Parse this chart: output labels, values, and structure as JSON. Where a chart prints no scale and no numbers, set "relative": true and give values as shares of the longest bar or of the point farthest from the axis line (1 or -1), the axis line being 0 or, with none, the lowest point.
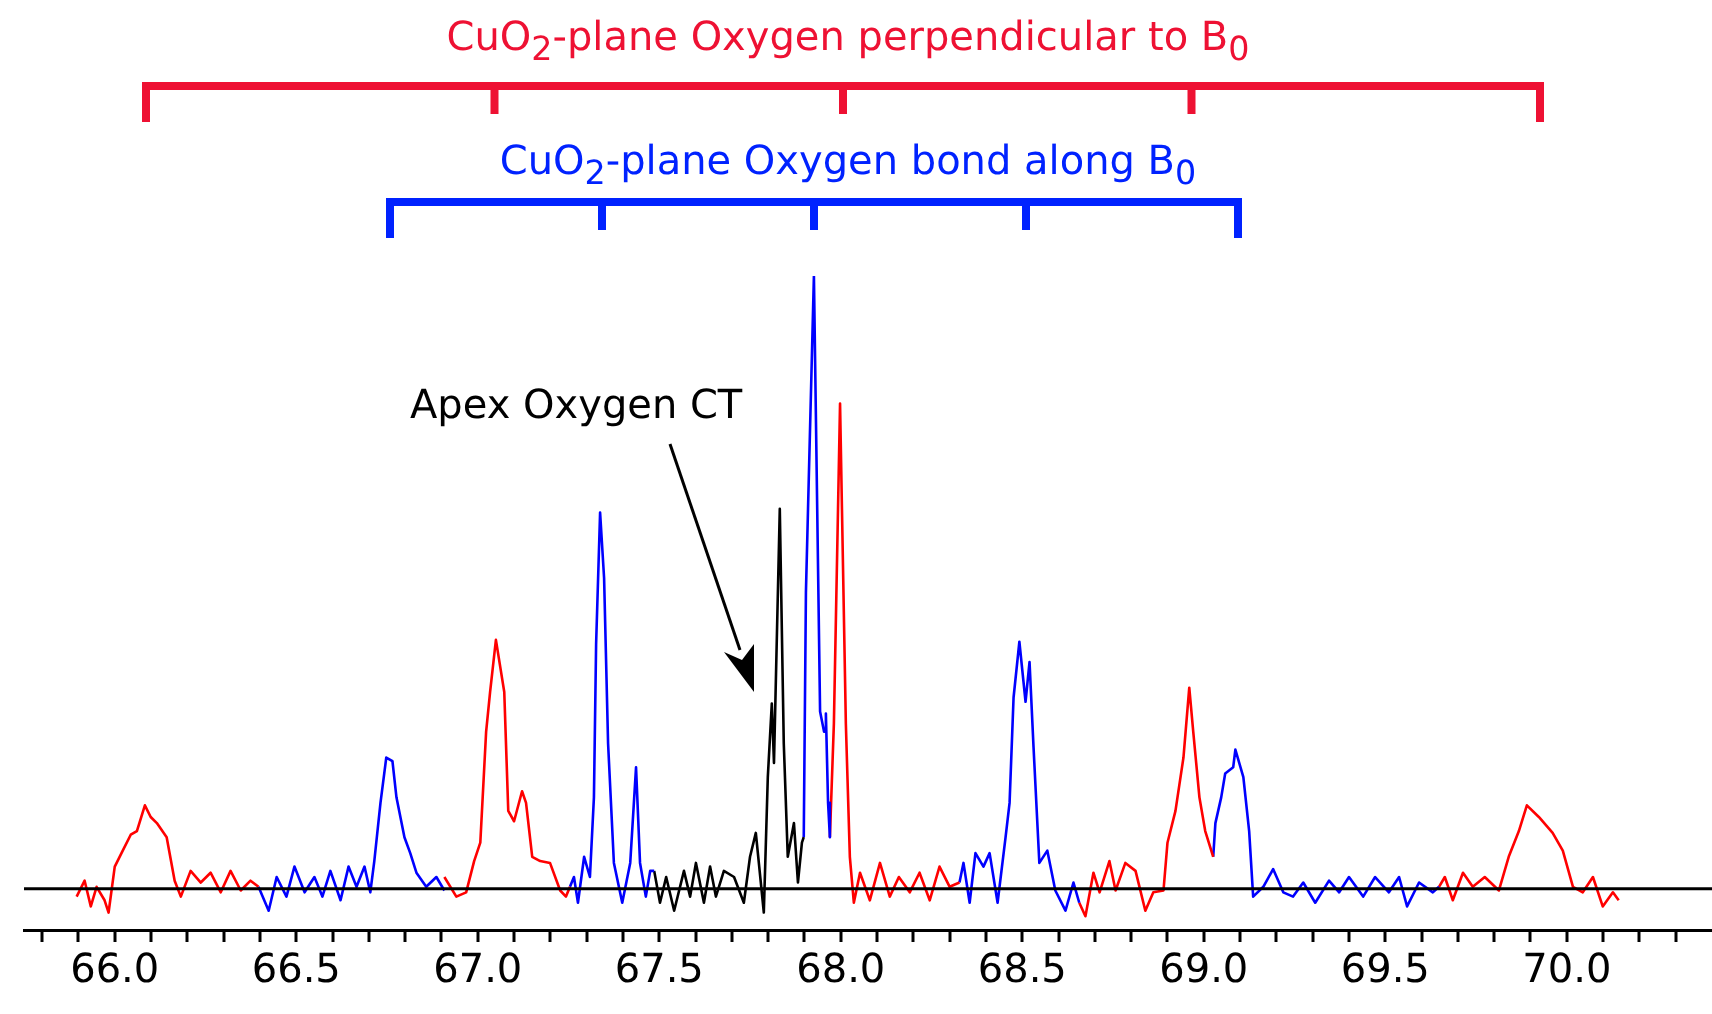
{
  "chart_data": {
    "type": "line",
    "relative": true,
    "grid": false,
    "marker": "none",
    "line_style": "solid",
    "tick_labels": "x",
    "annotations": [
      "CuO$_{2}$-plane Oxygen perpendicular to B$_{0}$",
      "CuO$_{2}$-plane Oxygen bond along B$_{0}$",
      "Apex Oxygen CT"
    ],
    "xlim": [
      65.75,
      70.4
    ],
    "xticks": [
      {
        "value": 65.8,
        "label": null
      },
      {
        "value": 65.9,
        "label": null
      },
      {
        "value": 66,
        "label": "66.0"
      },
      {
        "value": 66.1,
        "label": null
      },
      {
        "value": 66.2,
        "label": null
      },
      {
        "value": 66.3,
        "label": null
      },
      {
        "value": 66.4,
        "label": null
      },
      {
        "value": 66.5,
        "label": "66.5"
      },
      {
        "value": 66.6,
        "label": null
      },
      {
        "value": 66.7,
        "label": null
      },
      {
        "value": 66.8,
        "label": null
      },
      {
        "value": 66.9,
        "label": null
      },
      {
        "value": 67,
        "label": "67.0"
      },
      {
        "value": 67.1,
        "label": null
      },
      {
        "value": 67.2,
        "label": null
      },
      {
        "value": 67.3,
        "label": null
      },
      {
        "value": 67.4,
        "label": null
      },
      {
        "value": 67.5,
        "label": "67.5"
      },
      {
        "value": 67.6,
        "label": null
      },
      {
        "value": 67.7,
        "label": null
      },
      {
        "value": 67.8,
        "label": null
      },
      {
        "value": 67.9,
        "label": null
      },
      {
        "value": 68,
        "label": "68.0"
      },
      {
        "value": 68.1,
        "label": null
      },
      {
        "value": 68.2,
        "label": null
      },
      {
        "value": 68.3,
        "label": null
      },
      {
        "value": 68.4,
        "label": null
      },
      {
        "value": 68.5,
        "label": "68.5"
      },
      {
        "value": 68.6,
        "label": null
      },
      {
        "value": 68.7,
        "label": null
      },
      {
        "value": 68.8,
        "label": null
      },
      {
        "value": 68.9,
        "label": null
      },
      {
        "value": 69,
        "label": "69.0"
      },
      {
        "value": 69.1,
        "label": null
      },
      {
        "value": 69.2,
        "label": null
      },
      {
        "value": 69.3,
        "label": null
      },
      {
        "value": 69.4,
        "label": null
      },
      {
        "value": 69.5,
        "label": "69.5"
      },
      {
        "value": 69.6,
        "label": null
      },
      {
        "value": 69.7,
        "label": null
      },
      {
        "value": 69.8,
        "label": null
      },
      {
        "value": 69.9,
        "label": null
      },
      {
        "value": 70,
        "label": "70.0"
      },
      {
        "value": 70.1,
        "label": null
      },
      {
        "value": 70.2,
        "label": null
      },
      {
        "value": 70.3,
        "label": null
      }
    ],
    "ref_lines": [
      {
        "axis": "y",
        "value": 0,
        "color": "#000000"
      }
    ],
    "series": [
      {
        "color": "#ff0000",
        "x": [
          65.895,
          65.917,
          65.934,
          65.95,
          65.972,
          65.983,
          66.0,
          66.022,
          66.044,
          66.061,
          66.083,
          66.099,
          66.116,
          66.143,
          66.165,
          66.182,
          66.209,
          66.237,
          66.264,
          66.292,
          66.319,
          66.347,
          66.374,
          66.396
        ],
        "values": [
          -0.013,
          0.013,
          -0.029,
          0.003,
          -0.019,
          -0.039,
          0.036,
          0.062,
          0.088,
          0.094,
          0.136,
          0.117,
          0.107,
          0.084,
          0.013,
          -0.013,
          0.029,
          0.01,
          0.026,
          -0.006,
          0.029,
          -0.003,
          0.013,
          0.003
        ]
      },
      {
        "color": "#0000ff",
        "x": [
          66.396,
          66.424,
          66.446,
          66.473,
          66.495,
          66.523,
          66.55,
          66.572,
          66.594,
          66.622,
          66.644,
          66.666,
          66.688,
          66.704,
          66.715,
          66.732,
          66.748,
          66.765,
          66.776,
          66.798,
          66.814,
          66.831,
          66.858,
          66.886,
          66.908
        ],
        "values": [
          0.003,
          -0.036,
          0.019,
          -0.013,
          0.036,
          -0.006,
          0.019,
          -0.013,
          0.029,
          -0.019,
          0.036,
          0.003,
          0.036,
          -0.006,
          0.045,
          0.14,
          0.214,
          0.208,
          0.149,
          0.084,
          0.058,
          0.026,
          0.003,
          0.019,
          -0.003
        ]
      },
      {
        "color": "#ff0000",
        "x": [
          66.908,
          66.941,
          66.968,
          66.99,
          67.007,
          67.023,
          67.034,
          67.05,
          67.073,
          67.084,
          67.1,
          67.122,
          67.133,
          67.15,
          67.172,
          67.199,
          67.227,
          67.243,
          67.254
        ],
        "values": [
          0.019,
          -0.013,
          -0.006,
          0.045,
          0.075,
          0.256,
          0.321,
          0.406,
          0.321,
          0.127,
          0.11,
          0.159,
          0.14,
          0.052,
          0.045,
          0.042,
          -0.003,
          -0.013,
          0.003
        ]
      },
      {
        "color": "#0000ff",
        "x": [
          67.254,
          67.265,
          67.276,
          67.293,
          67.309,
          67.32,
          67.326,
          67.337,
          67.348,
          67.359,
          67.375,
          67.398,
          67.42,
          67.436,
          67.447,
          67.463,
          67.475,
          67.486
        ],
        "values": [
          0.003,
          0.019,
          -0.023,
          0.052,
          0.019,
          0.149,
          0.399,
          0.614,
          0.507,
          0.237,
          0.042,
          -0.023,
          0.042,
          0.198,
          0.042,
          -0.013,
          0.029,
          0.029
        ]
      },
      {
        "color": "#000000",
        "x": [
          67.486,
          67.502,
          67.519,
          67.541,
          67.568,
          67.585,
          67.601,
          67.623,
          67.64,
          67.656,
          67.678,
          67.706,
          67.733,
          67.75,
          67.766,
          67.788,
          67.799,
          67.81,
          67.816,
          67.832,
          67.843,
          67.854,
          67.871,
          67.882,
          67.893,
          67.898
        ],
        "values": [
          0.029,
          -0.023,
          0.019,
          -0.036,
          0.029,
          -0.013,
          0.042,
          -0.023,
          0.036,
          -0.013,
          0.029,
          0.019,
          -0.023,
          0.052,
          0.091,
          -0.039,
          0.182,
          0.302,
          0.205,
          0.62,
          0.237,
          0.052,
          0.107,
          0.01,
          0.075,
          0.084
        ]
      },
      {
        "color": "#0000ff",
        "x": [
          67.898,
          67.904,
          67.926,
          67.943,
          67.954,
          67.959,
          67.965,
          67.97
        ],
        "values": [
          0.084,
          0.484,
          1,
          0.289,
          0.256,
          0.286,
          0.14,
          0.084
        ]
      },
      {
        "color": "#ff0000",
        "x": [
          67.97,
          67.981,
          67.998,
          68.014,
          68.025,
          68.036,
          68.053,
          68.08,
          68.108,
          68.135,
          68.16,
          68.19,
          68.217,
          68.245,
          68.272,
          68.3,
          68.327
        ],
        "values": [
          0.084,
          0.269,
          0.792,
          0.269,
          0.052,
          -0.023,
          0.026,
          -0.019,
          0.042,
          -0.013,
          0.019,
          -0.006,
          0.026,
          -0.019,
          0.036,
          0.003,
          0.01
        ]
      },
      {
        "color": "#0000ff",
        "x": [
          68.327,
          68.338,
          68.355,
          68.371,
          68.393,
          68.41,
          68.432,
          68.454,
          68.465,
          68.476,
          68.492,
          68.509,
          68.52,
          68.531,
          68.547,
          68.569,
          68.591,
          68.619,
          68.641,
          68.657
        ],
        "values": [
          0.01,
          0.042,
          -0.023,
          0.058,
          0.036,
          0.058,
          -0.023,
          0.084,
          0.14,
          0.312,
          0.403,
          0.305,
          0.37,
          0.231,
          0.042,
          0.062,
          -0.003,
          -0.036,
          0.01,
          -0.023
        ]
      },
      {
        "color": "#ff0000",
        "x": [
          68.657,
          68.674,
          68.696,
          68.713,
          68.74,
          68.757,
          68.784,
          68.812,
          68.839,
          68.861,
          68.889,
          68.9,
          68.922,
          68.944,
          68.96,
          68.971,
          68.988,
          69.004,
          69.026
        ],
        "values": [
          -0.023,
          -0.045,
          0.026,
          -0.006,
          0.045,
          -0.003,
          0.042,
          0.029,
          -0.036,
          -0.006,
          -0.003,
          0.075,
          0.127,
          0.214,
          0.328,
          0.256,
          0.149,
          0.094,
          0.052
        ]
      },
      {
        "color": "#0000ff",
        "x": [
          69.026,
          69.032,
          69.048,
          69.059,
          69.081,
          69.087,
          69.109,
          69.125,
          69.136,
          69.164,
          69.191,
          69.219,
          69.246,
          69.274,
          69.307,
          69.345,
          69.373,
          69.4,
          69.439,
          69.472,
          69.51,
          69.538,
          69.56,
          69.593,
          69.631,
          69.648
        ],
        "values": [
          0.052,
          0.107,
          0.149,
          0.188,
          0.198,
          0.227,
          0.182,
          0.094,
          -0.013,
          0.003,
          0.032,
          -0.006,
          -0.013,
          0.01,
          -0.023,
          0.013,
          -0.006,
          0.019,
          -0.013,
          0.019,
          -0.006,
          0.019,
          -0.029,
          0.01,
          -0.006,
          0.003
        ]
      },
      {
        "color": "#ff0000",
        "x": [
          69.648,
          69.664,
          69.686,
          69.714,
          69.741,
          69.774,
          69.813,
          69.84,
          69.868,
          69.89,
          69.923,
          69.961,
          69.989,
          70.017,
          70.044,
          70.072,
          70.099,
          70.127,
          70.143
        ],
        "values": [
          0.003,
          0.019,
          -0.019,
          0.026,
          0.003,
          0.019,
          -0.003,
          0.052,
          0.094,
          0.136,
          0.117,
          0.091,
          0.062,
          0.003,
          -0.006,
          0.019,
          -0.029,
          -0.006,
          -0.019
        ]
      }
    ]
  }
}
